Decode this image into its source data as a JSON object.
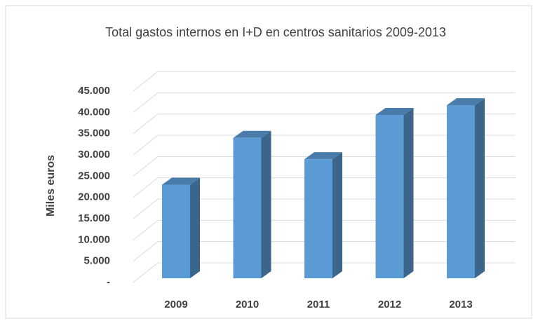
{
  "chart_data": {
    "type": "bar3d",
    "title": "Total gastos internos en I+D en centros sanitarios 2009-2013",
    "y_label": "Miles euros",
    "categories": [
      "2009",
      "2010",
      "2011",
      "2012",
      "2013"
    ],
    "values": [
      22000,
      33000,
      28000,
      38400,
      40700
    ],
    "color": "#5b9bd5",
    "ylim": [
      0,
      45000
    ],
    "yticks": [
      {
        "value": 0,
        "label": "-"
      },
      {
        "value": 5000,
        "label": "5.000"
      },
      {
        "value": 10000,
        "label": "10.000"
      },
      {
        "value": 15000,
        "label": "15.000"
      },
      {
        "value": 20000,
        "label": "20.000"
      },
      {
        "value": 25000,
        "label": "25.000"
      },
      {
        "value": 30000,
        "label": "30.000"
      },
      {
        "value": 35000,
        "label": "35.000"
      },
      {
        "value": 40000,
        "label": "40.000"
      },
      {
        "value": 45000,
        "label": "45.000"
      }
    ],
    "grid": true
  }
}
